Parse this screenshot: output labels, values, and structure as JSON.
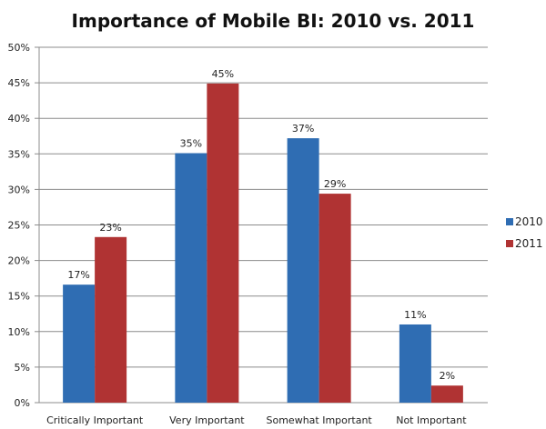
{
  "chart_data": {
    "type": "bar",
    "title": "Importance of Mobile BI: 2010 vs. 2011",
    "xlabel": "",
    "ylabel": "",
    "categories": [
      "Critically Important",
      "Very Important",
      "Somewhat Important",
      "Not Important"
    ],
    "series": [
      {
        "name": "2010",
        "color": "#2f6db3",
        "values": [
          16.6,
          35.1,
          37.2,
          11.0
        ],
        "labels": [
          "17%",
          "35%",
          "37%",
          "11%"
        ]
      },
      {
        "name": "2011",
        "color": "#b03333",
        "values": [
          23.3,
          44.9,
          29.4,
          2.4
        ],
        "labels": [
          "23%",
          "45%",
          "29%",
          "2%"
        ]
      }
    ],
    "ylim": [
      0,
      50
    ],
    "yticks": [
      0,
      5,
      10,
      15,
      20,
      25,
      30,
      35,
      40,
      45,
      50
    ],
    "ytick_labels": [
      "0%",
      "5%",
      "10%",
      "15%",
      "20%",
      "25%",
      "30%",
      "35%",
      "40%",
      "45%",
      "50%"
    ],
    "grid": true,
    "legend": "right"
  }
}
